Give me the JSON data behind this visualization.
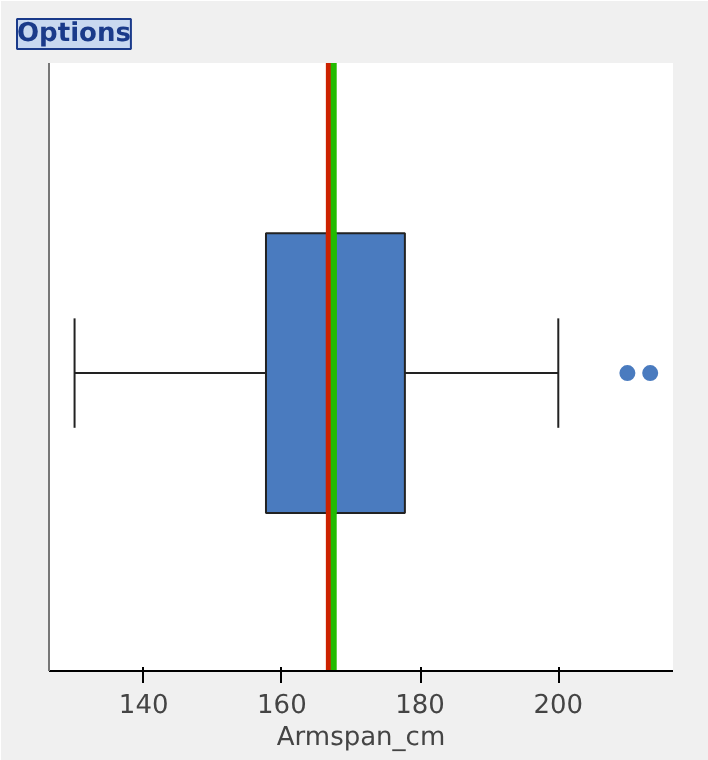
{
  "chart_data": {
    "type": "box",
    "orientation": "horizontal",
    "categories": [
      null
    ],
    "xlabel": "Armspan_cm",
    "xlim": [
      126.3,
      216.6
    ],
    "xticks": [
      140,
      160,
      180,
      200
    ],
    "grid": false,
    "color": "#4a7bbf",
    "boxes": [
      {
        "low": 130,
        "q1": 157.7,
        "median": 166.8,
        "q3": 177.8,
        "high": 200,
        "mean": 167.5,
        "outliers": [
          210,
          213.3
        ]
      }
    ],
    "ref_lines": [
      {
        "axis": "x",
        "value": 166.8,
        "color": "#cc2200"
      },
      {
        "axis": "x",
        "value": 167.5,
        "color": "#22bb00"
      }
    ],
    "annotations": [
      "Options"
    ]
  }
}
